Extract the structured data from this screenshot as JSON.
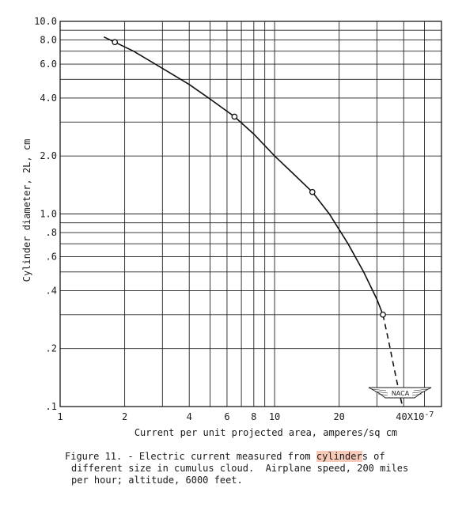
{
  "chart_data": {
    "type": "line",
    "title": "",
    "xlabel": "Current per unit projected area, amperes/sq cm",
    "ylabel": "Cylinder diameter, 2L, cm",
    "x_scale": "log",
    "y_scale": "log",
    "xlim": [
      1,
      60
    ],
    "ylim": [
      0.1,
      10.0
    ],
    "x_ticks": [
      {
        "value": 1,
        "label": "1"
      },
      {
        "value": 2,
        "label": "2"
      },
      {
        "value": 4,
        "label": "4"
      },
      {
        "value": 6,
        "label": "6"
      },
      {
        "value": 8,
        "label": "8"
      },
      {
        "value": 10,
        "label": "10"
      },
      {
        "value": 20,
        "label": "20"
      },
      {
        "value": 40,
        "label": "40X10"
      }
    ],
    "x_tick_exponent": "-7",
    "y_ticks": [
      {
        "value": 0.1,
        "label": ".1"
      },
      {
        "value": 0.2,
        "label": ".2"
      },
      {
        "value": 0.4,
        "label": ".4"
      },
      {
        "value": 0.6,
        "label": ".6"
      },
      {
        "value": 0.8,
        "label": ".8"
      },
      {
        "value": 1.0,
        "label": "1.0"
      },
      {
        "value": 2.0,
        "label": "2.0"
      },
      {
        "value": 4.0,
        "label": "4.0"
      },
      {
        "value": 6.0,
        "label": "6.0"
      },
      {
        "value": 8.0,
        "label": "8.0"
      },
      {
        "value": 10.0,
        "label": "10.0"
      }
    ],
    "grid": true,
    "series": [
      {
        "points": [
          {
            "x": 1.8,
            "y": 7.8
          },
          {
            "x": 6.5,
            "y": 3.2
          },
          {
            "x": 15,
            "y": 1.3
          },
          {
            "x": 32,
            "y": 0.3
          }
        ],
        "curve_solid": [
          [
            1.6,
            8.3
          ],
          [
            2.2,
            7.0
          ],
          [
            3.0,
            5.7
          ],
          [
            4.0,
            4.7
          ],
          [
            5.0,
            3.95
          ],
          [
            6.5,
            3.2
          ],
          [
            8.0,
            2.6
          ],
          [
            10.0,
            2.0
          ],
          [
            12.0,
            1.65
          ],
          [
            15.0,
            1.3
          ],
          [
            18.0,
            1.0
          ],
          [
            22.0,
            0.7
          ],
          [
            26.0,
            0.5
          ],
          [
            30.0,
            0.36
          ],
          [
            32.0,
            0.3
          ]
        ],
        "curve_dashed": [
          [
            32.0,
            0.3
          ],
          [
            34.0,
            0.22
          ],
          [
            36.0,
            0.16
          ],
          [
            38.0,
            0.12
          ],
          [
            39.5,
            0.1
          ]
        ]
      }
    ],
    "logo": "NACA"
  },
  "caption": {
    "line1_pre": "Figure 11. - Electric current measured from ",
    "line1_highlight": "cylinder",
    "line1_post": "s of",
    "line2": "different size in cumulus cloud.  Airplane speed, 200 miles",
    "line3": "per hour; altitude, 6000 feet."
  }
}
